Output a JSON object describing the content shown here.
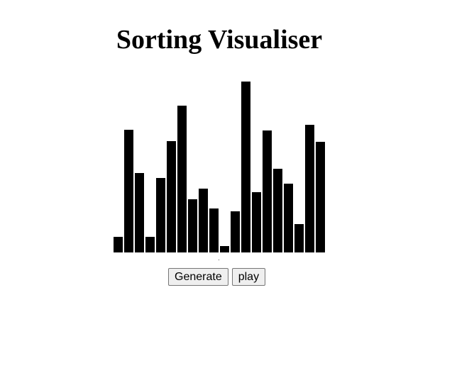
{
  "header": {
    "title": "Sorting Visualiser"
  },
  "array": {
    "values": [
      22,
      173,
      112,
      22,
      105,
      157,
      207,
      75,
      90,
      62,
      9,
      58,
      241,
      85,
      172,
      118,
      97,
      40,
      180,
      156
    ],
    "max_value": 243,
    "bar_color": "#000000"
  },
  "controls": {
    "generate_label": "Generate",
    "play_label": "play"
  }
}
